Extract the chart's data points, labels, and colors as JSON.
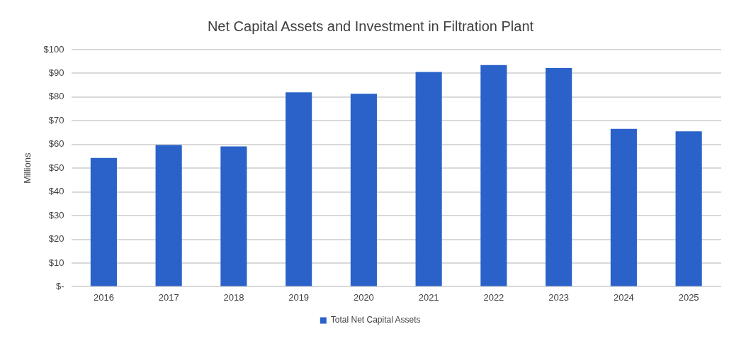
{
  "chart_data": {
    "type": "bar",
    "title": "Net Capital Assets and Investment in Filtration Plant",
    "ylabel": "Millions",
    "categories": [
      "2016",
      "2017",
      "2018",
      "2019",
      "2020",
      "2021",
      "2022",
      "2023",
      "2024",
      "2025"
    ],
    "series": [
      {
        "name": "Total Net Capital Assets",
        "color": "#2a62c9",
        "values": [
          54.3,
          59.8,
          59.2,
          82.0,
          81.4,
          90.6,
          93.5,
          92.2,
          66.6,
          65.5
        ]
      }
    ],
    "ylim": [
      0,
      100
    ],
    "yticks": [
      {
        "value": 0,
        "label": "$-"
      },
      {
        "value": 10,
        "label": "$10"
      },
      {
        "value": 20,
        "label": "$20"
      },
      {
        "value": 30,
        "label": "$30"
      },
      {
        "value": 40,
        "label": "$40"
      },
      {
        "value": 50,
        "label": "$50"
      },
      {
        "value": 60,
        "label": "$60"
      },
      {
        "value": 70,
        "label": "$70"
      },
      {
        "value": 80,
        "label": "$80"
      },
      {
        "value": 90,
        "label": "$90"
      },
      {
        "value": 100,
        "label": "$100"
      }
    ],
    "grid": "y",
    "legend": "bottom"
  }
}
